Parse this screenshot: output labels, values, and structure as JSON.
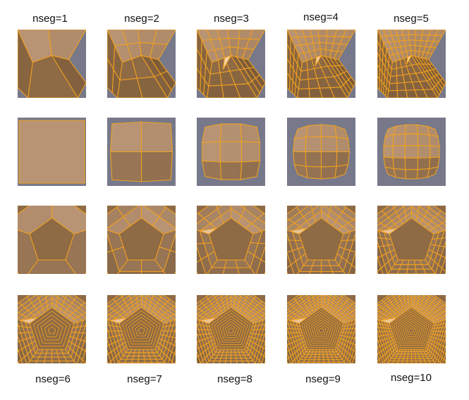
{
  "labels": [
    "nseg=1",
    "nseg=2",
    "nseg=3",
    "nseg=4",
    "nseg=5",
    "nseg=6",
    "nseg=7",
    "nseg=8",
    "nseg=9",
    "nseg=10"
  ],
  "colors": {
    "background_sky": "#77798a",
    "face_mid": "#8e6a45",
    "face_light": "#b89474",
    "face_dark": "#6f5030",
    "edge": "#f0a020",
    "highlight": "#f2d1a8"
  }
}
